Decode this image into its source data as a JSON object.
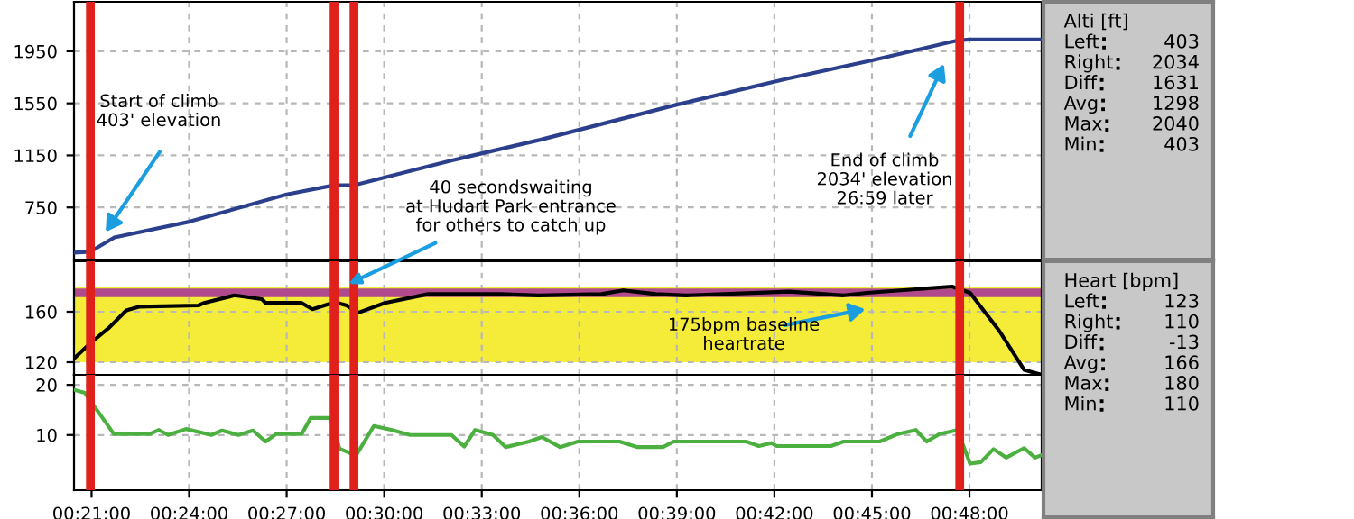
{
  "chart_data": [
    {
      "type": "line",
      "ylim": [
        350,
        2330
      ],
      "yticks": [
        750,
        1150,
        1550,
        1950
      ],
      "xlim": [
        0.341,
        0.837
      ],
      "xticks": [
        {
          "value": 0.35,
          "label": null
        },
        {
          "value": 0.4,
          "label": null
        },
        {
          "value": 0.45,
          "label": null
        },
        {
          "value": 0.5,
          "label": null
        },
        {
          "value": 0.55,
          "label": null
        },
        {
          "value": 0.6,
          "label": null
        },
        {
          "value": 0.65,
          "label": null
        },
        {
          "value": 0.7,
          "label": null
        },
        {
          "value": 0.75,
          "label": null
        },
        {
          "value": 0.8,
          "label": null
        }
      ],
      "tick_labels": "y",
      "grid": true,
      "series": [
        {
          "color": "#2b3f8c",
          "x": [
            0.341,
            0.3494,
            0.3617,
            0.4,
            0.45,
            0.4742,
            0.4842,
            0.5342,
            0.58,
            0.65,
            0.7067,
            0.75,
            0.79,
            0.7945,
            0.8,
            0.837
          ],
          "values": [
            403,
            410,
            520,
            640,
            850,
            920,
            920,
            1110,
            1270,
            1540,
            1740,
            1880,
            2020,
            2034,
            2040,
            2040
          ]
        }
      ],
      "ref_lines": [
        {
          "axis": "x",
          "value": 0.3494,
          "color": "#e0201a"
        },
        {
          "axis": "x",
          "value": 0.4743,
          "color": "#e0201a"
        },
        {
          "axis": "x",
          "value": 0.4845,
          "color": "#e0201a"
        },
        {
          "axis": "x",
          "value": 0.795,
          "color": "#e0201a"
        }
      ],
      "annotations": [
        "Start of climb\n403' elevation",
        "End of climb\n2034' elevation\n26:59 later"
      ]
    },
    {
      "type": "line",
      "ylim": [
        110,
        200
      ],
      "yticks": [
        120,
        160
      ],
      "xlim": [
        0.341,
        0.837
      ],
      "xticks": [
        {
          "value": 0.35,
          "label": null
        },
        {
          "value": 0.4,
          "label": null
        },
        {
          "value": 0.45,
          "label": null
        },
        {
          "value": 0.5,
          "label": null
        },
        {
          "value": 0.55,
          "label": null
        },
        {
          "value": 0.6,
          "label": null
        },
        {
          "value": 0.65,
          "label": null
        },
        {
          "value": 0.7,
          "label": null
        },
        {
          "value": 0.75,
          "label": null
        },
        {
          "value": 0.8,
          "label": null
        }
      ],
      "tick_labels": "y",
      "grid": true,
      "bands": [
        {
          "axis": "y",
          "from": 120,
          "to": 180,
          "color": "#f5ec3a"
        }
      ],
      "ref_lines": [
        {
          "axis": "y",
          "value": 175,
          "color": "#b04a8c"
        },
        {
          "axis": "x",
          "value": 0.3494,
          "color": "#e0201a"
        },
        {
          "axis": "x",
          "value": 0.4743,
          "color": "#e0201a"
        },
        {
          "axis": "x",
          "value": 0.4845,
          "color": "#e0201a"
        },
        {
          "axis": "x",
          "value": 0.795,
          "color": "#e0201a"
        }
      ],
      "series": [
        {
          "color": "#000000",
          "x": [
            0.341,
            0.3493,
            0.3587,
            0.3678,
            0.3743,
            0.4048,
            0.4077,
            0.4233,
            0.4373,
            0.4392,
            0.4577,
            0.4632,
            0.4715,
            0.4762,
            0.4808,
            0.4863,
            0.5003,
            0.5225,
            0.5595,
            0.579,
            0.6113,
            0.6225,
            0.6392,
            0.655,
            0.7077,
            0.7355,
            0.7475,
            0.791,
            0.8003,
            0.8152,
            0.828,
            0.837
          ],
          "values": [
            123,
            135,
            147,
            161,
            164,
            165,
            167,
            173,
            170,
            167,
            167,
            162,
            166,
            167,
            165,
            159,
            167,
            174,
            174,
            173,
            174,
            177,
            174,
            173,
            176,
            173,
            175,
            180,
            175,
            145,
            114,
            110
          ]
        }
      ],
      "annotations": [
        {
          "text": "40 secondswaiting\nat Hudart Park entrance\nfor others to catch up",
          "x": 0.4817,
          "y": 182
        },
        "175bpm baseline\nheartrate"
      ]
    },
    {
      "type": "line",
      "ylim": [
        -1,
        22
      ],
      "yticks": [
        10,
        20
      ],
      "xlim": [
        0.341,
        0.837
      ],
      "xticks": [
        {
          "value": 0.35,
          "label": "00:21:00"
        },
        {
          "value": 0.4,
          "label": "00:24:00"
        },
        {
          "value": 0.45,
          "label": "00:27:00"
        },
        {
          "value": 0.5,
          "label": "00:30:00"
        },
        {
          "value": 0.55,
          "label": "00:33:00"
        },
        {
          "value": 0.6,
          "label": "00:36:00"
        },
        {
          "value": 0.65,
          "label": "00:39:00"
        },
        {
          "value": 0.7,
          "label": "00:42:00"
        },
        {
          "value": 0.75,
          "label": "00:45:00"
        },
        {
          "value": 0.8,
          "label": "00:48:00"
        }
      ],
      "grid": true,
      "ref_lines": [
        {
          "axis": "x",
          "value": 0.3494,
          "color": "#e0201a"
        },
        {
          "axis": "x",
          "value": 0.4743,
          "color": "#e0201a"
        },
        {
          "axis": "x",
          "value": 0.4845,
          "color": "#e0201a"
        },
        {
          "axis": "x",
          "value": 0.795,
          "color": "#e0201a"
        }
      ],
      "series": [
        {
          "color": "#4cb040",
          "x": [
            0.341,
            0.3466,
            0.3494,
            0.354,
            0.3614,
            0.3799,
            0.3845,
            0.3892,
            0.3984,
            0.4114,
            0.4169,
            0.4253,
            0.4327,
            0.4392,
            0.4447,
            0.4577,
            0.4623,
            0.4725,
            0.4771,
            0.4855,
            0.4947,
            0.504,
            0.5132,
            0.5345,
            0.541,
            0.5466,
            0.5558,
            0.5623,
            0.5743,
            0.5808,
            0.5901,
            0.5993,
            0.6206,
            0.6299,
            0.6429,
            0.6484,
            0.6855,
            0.692,
            0.6984,
            0.7012,
            0.729,
            0.7355,
            0.754,
            0.7633,
            0.7725,
            0.7781,
            0.7846,
            0.7938,
            0.8003,
            0.8058,
            0.8123,
            0.8188,
            0.828,
            0.8336,
            0.837
          ],
          "values": [
            19,
            18.4,
            16.7,
            14.3,
            10.2,
            10.2,
            11,
            10,
            11.2,
            10,
            10.9,
            10,
            10.9,
            8.7,
            10.2,
            10.2,
            13.4,
            13.4,
            7.3,
            5.9,
            11.8,
            11,
            10,
            10,
            7.7,
            11,
            10,
            7.6,
            8.7,
            9.6,
            7.6,
            8.7,
            8.7,
            7.6,
            7.6,
            8.7,
            8.7,
            7.8,
            8.4,
            7.8,
            7.8,
            8.7,
            8.7,
            10.2,
            11,
            8.7,
            10.2,
            11,
            4.3,
            4.6,
            7.2,
            5.5,
            7.4,
            5.5,
            6
          ]
        }
      ]
    },
    {
      "type": "other",
      "title": "Alti [ft]",
      "categories": [
        "Left",
        "Right",
        "Diff",
        "Avg",
        "Max",
        "Min"
      ],
      "values": [
        403,
        2034,
        1631,
        1298,
        2040,
        403
      ],
      "data_labels": true
    },
    {
      "type": "other",
      "title": "Heart [bpm]",
      "categories": [
        "Left",
        "Right",
        "Diff",
        "Avg",
        "Max",
        "Min"
      ],
      "values": [
        123,
        110,
        -13,
        166,
        180,
        110
      ],
      "data_labels": true
    }
  ]
}
